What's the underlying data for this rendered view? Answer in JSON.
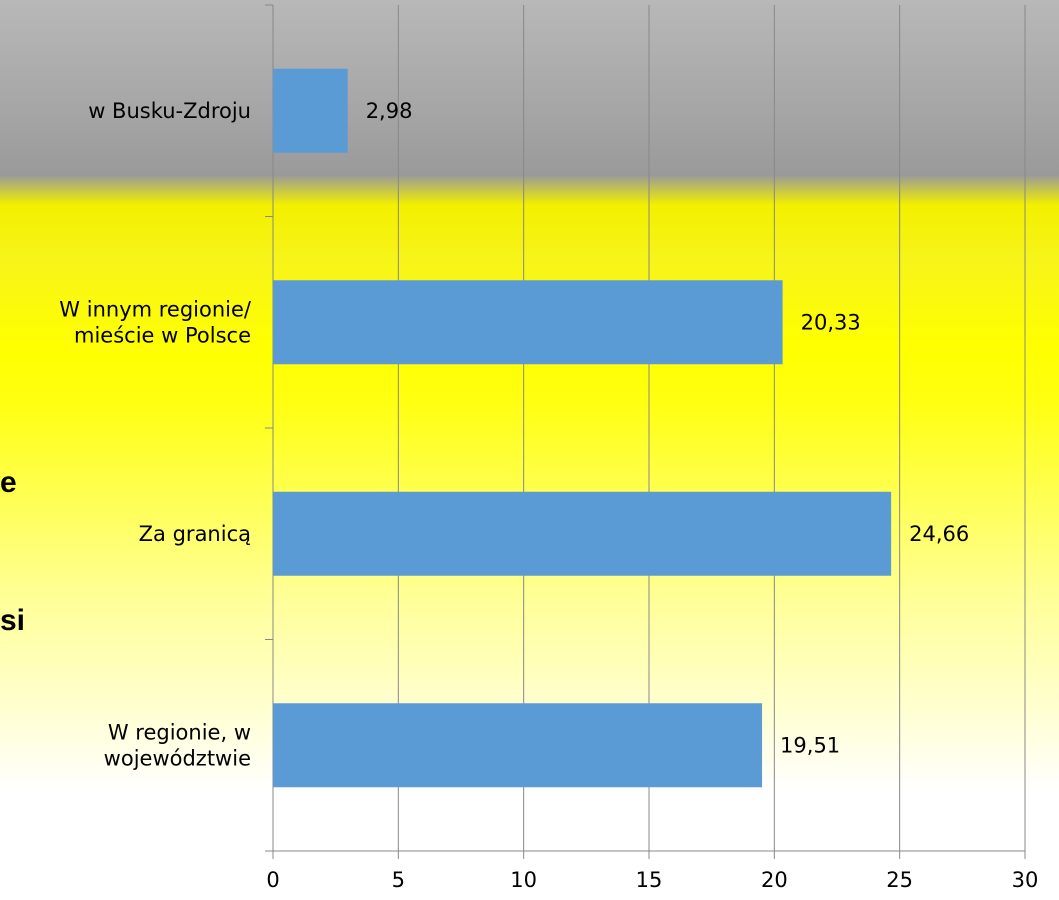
{
  "chart_data": {
    "type": "bar",
    "orientation": "horizontal",
    "categories": [
      [
        "w Busku-Zdroju"
      ],
      [
        "W innym regionie/",
        "mieście w Polsce"
      ],
      [
        "Za granicą"
      ],
      [
        "W regionie, w",
        "województwie"
      ]
    ],
    "values": [
      2.98,
      20.33,
      24.66,
      19.51
    ],
    "value_labels": [
      "2,98",
      "20,33",
      "24,66",
      "19,51"
    ],
    "xlim": [
      0,
      30
    ],
    "xticks": [
      0,
      5,
      10,
      15,
      20,
      25,
      30
    ],
    "title": "",
    "xlabel": "",
    "ylabel": "",
    "grid": "vertical",
    "bar_color": "#5b9bd5",
    "grid_color": "#888888"
  },
  "edge_text": [
    "e",
    "si"
  ]
}
